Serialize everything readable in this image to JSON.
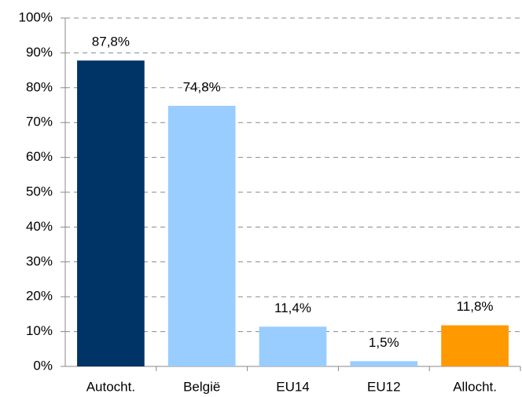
{
  "chart_data": {
    "type": "bar",
    "categories": [
      "Autocht.",
      "België",
      "EU14",
      "EU12",
      "Allocht."
    ],
    "values": [
      87.8,
      74.8,
      11.4,
      1.5,
      11.8
    ],
    "value_labels": [
      "87,8%",
      "74,8%",
      "11,4%",
      "1,5%",
      "11,8%"
    ],
    "colors": [
      "#003366",
      "#99ccff",
      "#99ccff",
      "#99ccff",
      "#ff9900"
    ],
    "ylim": [
      0,
      100
    ],
    "yticks": [
      {
        "value": 0,
        "label": "0%"
      },
      {
        "value": 10,
        "label": "10%"
      },
      {
        "value": 20,
        "label": "20%"
      },
      {
        "value": 30,
        "label": "30%"
      },
      {
        "value": 40,
        "label": "40%"
      },
      {
        "value": 50,
        "label": "50%"
      },
      {
        "value": 60,
        "label": "60%"
      },
      {
        "value": 70,
        "label": "70%"
      },
      {
        "value": 80,
        "label": "80%"
      },
      {
        "value": 90,
        "label": "90%"
      },
      {
        "value": 100,
        "label": "100%"
      }
    ],
    "grid": true
  }
}
